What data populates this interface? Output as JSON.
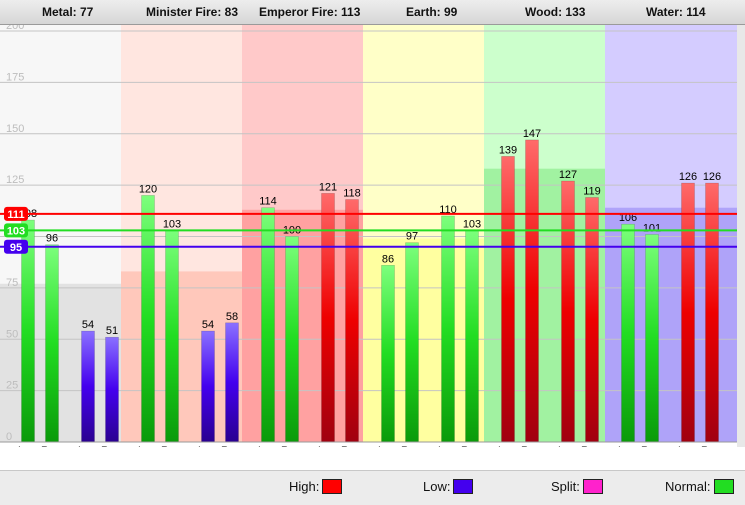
{
  "header": {
    "items": [
      {
        "label": "Metal: 77"
      },
      {
        "label": "Minister Fire: 83"
      },
      {
        "label": "Emperor Fire: 113"
      },
      {
        "label": "Earth: 99"
      },
      {
        "label": "Wood: 133"
      },
      {
        "label": "Water: 114"
      }
    ]
  },
  "legend": {
    "items": [
      {
        "label": "High:",
        "color": "#ff0000"
      },
      {
        "label": "Low:",
        "color": "#4400ee"
      },
      {
        "label": "Split:",
        "color": "#ff22cc"
      },
      {
        "label": "Normal:",
        "color": "#22dd22"
      }
    ]
  },
  "colors": {
    "high": "#ff0000",
    "low": "#4400ee",
    "normal": "#22dd22",
    "grid": "#c4c4c4"
  },
  "chart_data": {
    "type": "bar",
    "ylim": [
      0,
      200
    ],
    "yticks": [
      "0",
      "25",
      "50",
      "75",
      "100",
      "125",
      "150",
      "175",
      "200"
    ],
    "grid": true,
    "reference_lines": [
      {
        "value": 111,
        "label": "111",
        "status": "high"
      },
      {
        "value": 103,
        "label": "103",
        "status": "normal"
      },
      {
        "value": 95,
        "label": "95",
        "status": "low"
      }
    ],
    "groups": [
      {
        "name": "Metal",
        "value": 77,
        "bg": "#f7f7f7",
        "fill": "#dedede"
      },
      {
        "name": "Minister Fire",
        "value": 83,
        "bg": "#ffe6e0",
        "fill": "#ffc2b4"
      },
      {
        "name": "Emperor Fire",
        "value": 113,
        "bg": "#ffc9c9",
        "fill": "#ff9a9a"
      },
      {
        "name": "Earth",
        "value": 99,
        "bg": "#ffffc8",
        "fill": "#ffff99"
      },
      {
        "name": "Wood",
        "value": 133,
        "bg": "#ccffcc",
        "fill": "#99f099"
      },
      {
        "name": "Water",
        "value": 114,
        "bg": "#d4ccff",
        "fill": "#a89bf8"
      }
    ],
    "meridians": [
      {
        "code": "LU",
        "L": {
          "label": "L",
          "value": 108,
          "status": "normal"
        },
        "R": {
          "label": "R",
          "value": 96,
          "status": "normal"
        }
      },
      {
        "code": "LI",
        "L": {
          "label": "L",
          "value": 54,
          "status": "low"
        },
        "R": {
          "label": "R",
          "value": 51,
          "status": "low"
        }
      },
      {
        "code": "PC",
        "L": {
          "label": "L",
          "value": 120,
          "status": "normal"
        },
        "R": {
          "label": "R",
          "value": 103,
          "status": "normal"
        }
      },
      {
        "code": "TE",
        "L": {
          "label": "L",
          "value": 54,
          "status": "low"
        },
        "R": {
          "label": "R",
          "value": 58,
          "status": "low"
        }
      },
      {
        "code": "HT",
        "L": {
          "label": "L",
          "value": 114,
          "status": "normal"
        },
        "R": {
          "label": "R",
          "value": 100,
          "status": "normal"
        }
      },
      {
        "code": "SI",
        "L": {
          "label": "L",
          "value": 121,
          "status": "high"
        },
        "R": {
          "label": "R",
          "value": 118,
          "status": "high"
        }
      },
      {
        "code": "SP",
        "L": {
          "label": "L",
          "value": 86,
          "status": "normal"
        },
        "R": {
          "label": "R",
          "value": 97,
          "status": "normal"
        }
      },
      {
        "code": "ST",
        "L": {
          "label": "L",
          "value": 110,
          "status": "normal"
        },
        "R": {
          "label": "R",
          "value": 103,
          "status": "normal"
        }
      },
      {
        "code": "LR",
        "L": {
          "label": "L",
          "value": 139,
          "status": "high"
        },
        "R": {
          "label": "R",
          "value": 147,
          "status": "high"
        }
      },
      {
        "code": "GB",
        "L": {
          "label": "L",
          "value": 127,
          "status": "high"
        },
        "R": {
          "label": "R",
          "value": 119,
          "status": "high"
        }
      },
      {
        "code": "KI",
        "L": {
          "label": "L",
          "value": 106,
          "status": "normal"
        },
        "R": {
          "label": "R",
          "value": 101,
          "status": "normal"
        }
      },
      {
        "code": "BL",
        "L": {
          "label": "L",
          "value": 126,
          "status": "high"
        },
        "R": {
          "label": "R",
          "value": 126,
          "status": "high"
        }
      }
    ]
  }
}
